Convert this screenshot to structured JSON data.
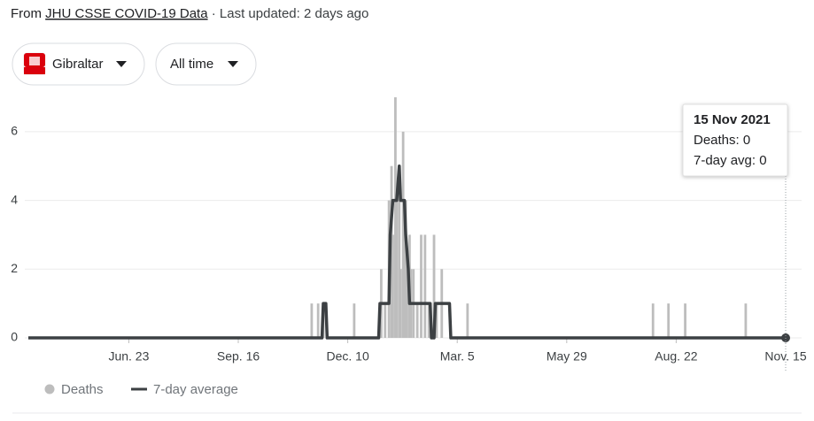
{
  "header": {
    "prefix": "From",
    "source": "JHU CSSE COVID-19 Data",
    "updated": "· Last updated: 2 days ago"
  },
  "filters": {
    "location": "Gibraltar",
    "range": "All time"
  },
  "tooltip": {
    "date": "15 Nov 2021",
    "deaths": "Deaths: 0",
    "average": "7-day avg: 0"
  },
  "chart_data": {
    "type": "bar-line",
    "xlim": [
      0,
      588
    ],
    "xticks": [
      {
        "value": 78,
        "label": "Jun. 23"
      },
      {
        "value": 163,
        "label": "Sep. 16"
      },
      {
        "value": 248,
        "label": "Dec. 10"
      },
      {
        "value": 333,
        "label": "Mar. 5"
      },
      {
        "value": 418,
        "label": "May 29"
      },
      {
        "value": 503,
        "label": "Aug. 22"
      },
      {
        "value": 588,
        "label": "Nov. 15"
      }
    ],
    "ylim": [
      0,
      7
    ],
    "yticks": [
      0,
      2,
      4,
      6
    ],
    "grid": true,
    "series": [
      {
        "name": "Deaths",
        "color": "#bdbdbd",
        "type": "bar",
        "x": [
          220,
          225,
          229,
          253,
          274,
          277,
          280,
          282,
          283,
          285,
          286,
          288,
          289,
          291,
          292,
          293,
          294,
          296,
          297,
          299,
          302,
          305,
          308,
          311,
          315,
          317,
          321,
          341,
          485,
          497,
          510,
          557
        ],
        "values": [
          1,
          1,
          1,
          1,
          2,
          1,
          4,
          5,
          3,
          7,
          4,
          5,
          2,
          6,
          3,
          4,
          2,
          3,
          2,
          2,
          1,
          3,
          3,
          1,
          3,
          1,
          2,
          1,
          1,
          1,
          1,
          1
        ]
      },
      {
        "name": "7-day average",
        "color": "#3c4043",
        "type": "line",
        "x": [
          0,
          228,
          229,
          231,
          232,
          272,
          273,
          280,
          281,
          283,
          286,
          288,
          289,
          292,
          293,
          295,
          296,
          312,
          313,
          315,
          316,
          327,
          328,
          588
        ],
        "values": [
          0,
          0,
          1,
          1,
          0,
          0,
          1,
          1,
          3,
          4,
          4,
          5,
          4,
          4,
          3,
          2,
          1,
          1,
          0,
          0,
          1,
          1,
          0,
          0
        ]
      }
    ]
  }
}
